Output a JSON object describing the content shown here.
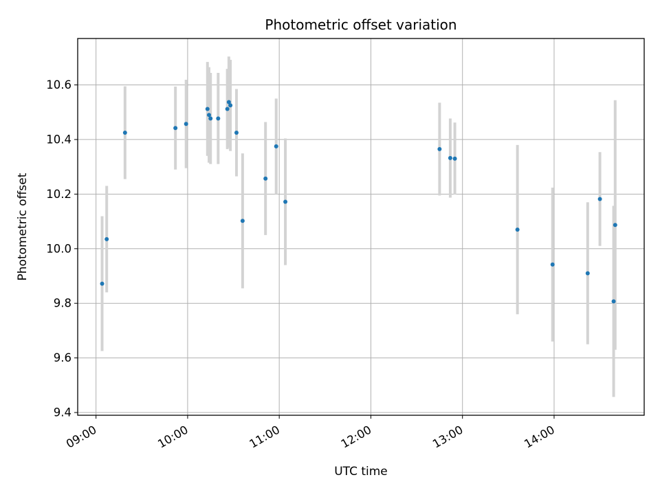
{
  "chart_data": {
    "type": "scatter",
    "title": "Photometric offset variation",
    "xlabel": "UTC time",
    "ylabel": "Photometric offset",
    "x_tick_labels": [
      "09:00",
      "10:00",
      "11:00",
      "12:00",
      "13:00",
      "14:00"
    ],
    "y_tick_labels": [
      "9.4",
      "9.6",
      "9.8",
      "10.0",
      "10.2",
      "10.4",
      "10.6"
    ],
    "xlim": [
      "08:48",
      "14:59"
    ],
    "ylim": [
      9.39,
      10.77
    ],
    "grid": true,
    "colors": {
      "point": "#1f77b4",
      "errorbar": "#d3d3d3",
      "grid": "#b0b0b0"
    },
    "points": [
      {
        "x": "09:04",
        "y": 9.872,
        "yerr": 0.247
      },
      {
        "x": "09:07",
        "y": 10.035,
        "yerr": 0.195
      },
      {
        "x": "09:19",
        "y": 10.425,
        "yerr": 0.17
      },
      {
        "x": "09:52",
        "y": 10.442,
        "yerr": 0.152
      },
      {
        "x": "09:59",
        "y": 10.457,
        "yerr": 0.162
      },
      {
        "x": "10:13",
        "y": 10.512,
        "yerr": 0.172
      },
      {
        "x": "10:14",
        "y": 10.49,
        "yerr": 0.175
      },
      {
        "x": "10:15",
        "y": 10.477,
        "yerr": 0.167
      },
      {
        "x": "10:20",
        "y": 10.477,
        "yerr": 0.167
      },
      {
        "x": "10:26",
        "y": 10.512,
        "yerr": 0.147
      },
      {
        "x": "10:27",
        "y": 10.537,
        "yerr": 0.167
      },
      {
        "x": "10:28",
        "y": 10.525,
        "yerr": 0.167
      },
      {
        "x": "10:32",
        "y": 10.425,
        "yerr": 0.16
      },
      {
        "x": "10:36",
        "y": 10.102,
        "yerr": 0.247
      },
      {
        "x": "10:51",
        "y": 10.257,
        "yerr": 0.207
      },
      {
        "x": "10:58",
        "y": 10.375,
        "yerr": 0.175
      },
      {
        "x": "11:04",
        "y": 10.172,
        "yerr": 0.232
      },
      {
        "x": "12:45",
        "y": 10.365,
        "yerr": 0.17
      },
      {
        "x": "12:52",
        "y": 10.332,
        "yerr": 0.145
      },
      {
        "x": "12:55",
        "y": 10.33,
        "yerr": 0.132
      },
      {
        "x": "13:36",
        "y": 10.07,
        "yerr": 0.31
      },
      {
        "x": "13:59",
        "y": 9.942,
        "yerr": 0.282
      },
      {
        "x": "14:22",
        "y": 9.91,
        "yerr": 0.26
      },
      {
        "x": "14:30",
        "y": 10.182,
        "yerr": 0.172
      },
      {
        "x": "14:39",
        "y": 9.807,
        "yerr": 0.35
      },
      {
        "x": "14:40",
        "y": 10.087,
        "yerr": 0.457
      }
    ]
  }
}
